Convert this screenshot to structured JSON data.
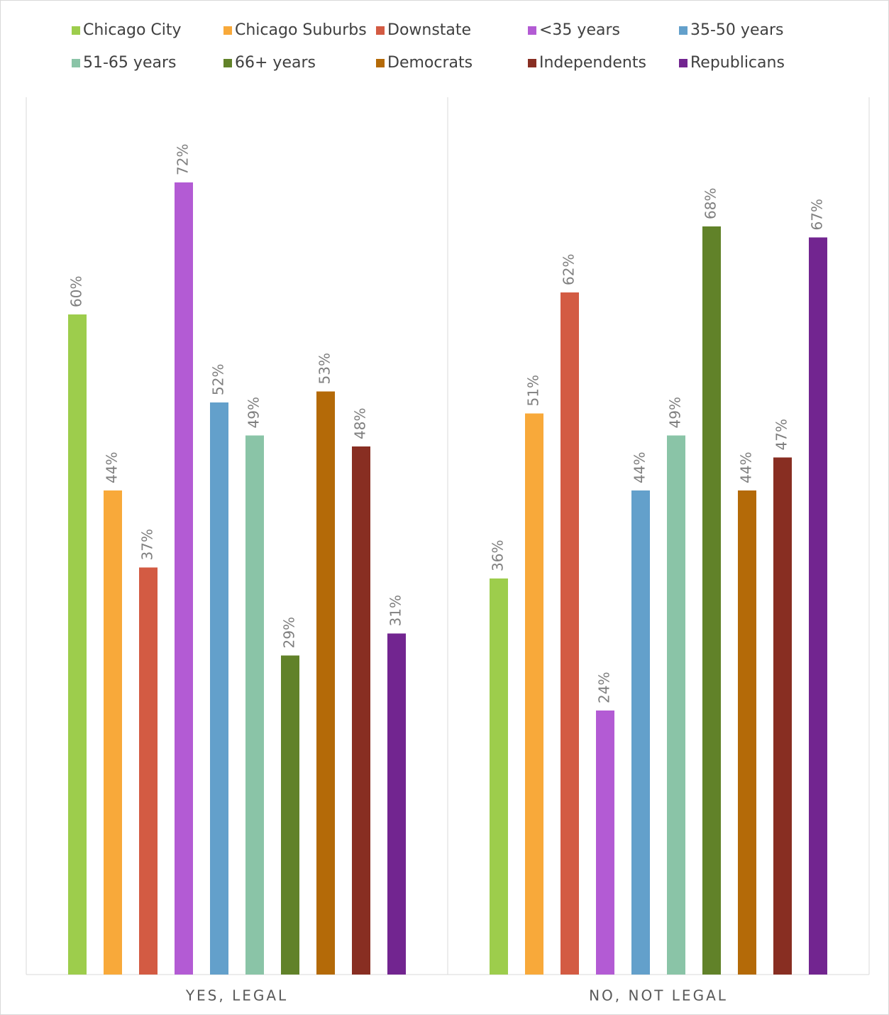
{
  "chart_data": {
    "type": "bar",
    "categories": [
      "YES, LEGAL",
      "NO, NOT LEGAL"
    ],
    "ylim": [
      0,
      80
    ],
    "legend": "top",
    "series": [
      {
        "name": "Chicago City",
        "color": "#9dcd4c",
        "values": [
          60,
          36
        ],
        "value_labels": [
          "60%",
          "36%"
        ]
      },
      {
        "name": "Chicago Suburbs",
        "color": "#f8a93a",
        "values": [
          44,
          51
        ],
        "value_labels": [
          "44%",
          "51%"
        ]
      },
      {
        "name": "Downstate",
        "color": "#d35b43",
        "values": [
          37,
          62
        ],
        "value_labels": [
          "37%",
          "62%"
        ]
      },
      {
        "name": "<35 years",
        "color": "#b35bd4",
        "values": [
          72,
          24
        ],
        "value_labels": [
          "72%",
          "24%"
        ]
      },
      {
        "name": "35-50 years",
        "color": "#63a0cb",
        "values": [
          52,
          44
        ],
        "value_labels": [
          "52%",
          "44%"
        ]
      },
      {
        "name": "51-65 years",
        "color": "#8ac4a7",
        "values": [
          49,
          49
        ],
        "value_labels": [
          "49%",
          "49%"
        ]
      },
      {
        "name": "66+ years",
        "color": "#618229",
        "values": [
          29,
          68
        ],
        "value_labels": [
          "29%",
          "68%"
        ]
      },
      {
        "name": "Democrats",
        "color": "#b46a08",
        "values": [
          53,
          44
        ],
        "value_labels": [
          "53%",
          "44%"
        ]
      },
      {
        "name": "Independents",
        "color": "#882e22",
        "values": [
          48,
          47
        ],
        "value_labels": [
          "48%",
          "47%"
        ]
      },
      {
        "name": "Republicans",
        "color": "#722590",
        "values": [
          31,
          67
        ],
        "value_labels": [
          "31%",
          "67%"
        ]
      }
    ]
  }
}
